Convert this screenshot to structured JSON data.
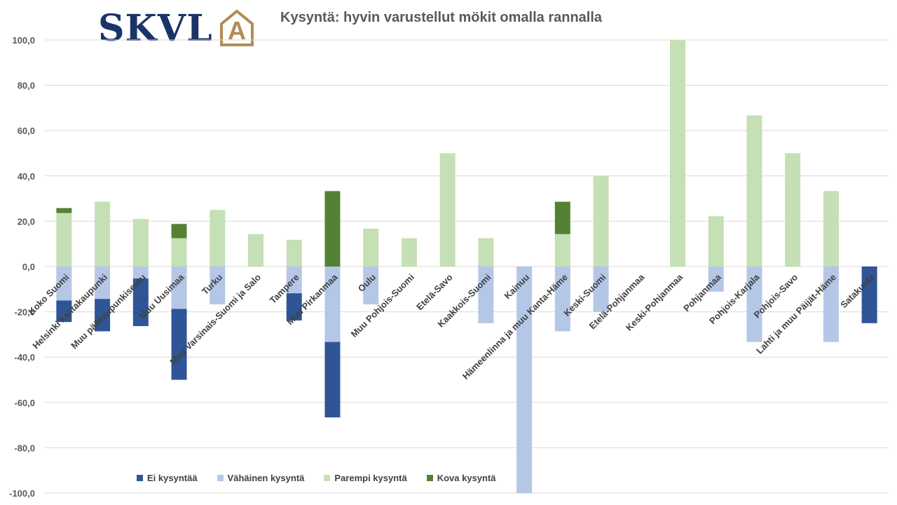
{
  "logo": {
    "text": "SKVL",
    "mark_letter": "A",
    "text_color": "#1b3468",
    "mark_color": "#b08d55"
  },
  "title": "Kysyntä: hyvin varustellut mökit omalla rannalla",
  "chart_data": {
    "type": "bar",
    "stacked": true,
    "title": "Kysyntä: hyvin varustellut mökit omalla rannalla",
    "xlabel": "",
    "ylabel": "",
    "ylim": [
      -100,
      100
    ],
    "yticks": [
      -100,
      -80,
      -60,
      -40,
      -20,
      0,
      20,
      40,
      60,
      80,
      100
    ],
    "ytick_labels": [
      "-100,0",
      "-80,0",
      "-60,0",
      "-40,0",
      "-20,0",
      "0,0",
      "20,0",
      "40,0",
      "60,0",
      "80,0",
      "100,0"
    ],
    "grid": true,
    "legend_position": "bottom",
    "categories": [
      "Koko Suomi",
      "Helsinki kantakaupunki",
      "Muu pääkaupunkiseutu",
      "Muu Uusimaa",
      "Turku",
      "Muu Varsinais-Suomi ja Salo",
      "Tampere",
      "Muu Pirkanmaa",
      "Oulu",
      "Muu Pohjois-Suomi",
      "Etelä-Savo",
      "Kaakkois-Suomi",
      "Kainuu",
      "Hämeenlinna ja muu Kanta-Häme",
      "Keski-Suomi",
      "Etelä-Pohjanmaa",
      "Keski-Pohjanmaa",
      "Pohjanmaa",
      "Pohjois-Karjala",
      "Pohjois-Savo",
      "Lahti ja muu Päijät-Häme",
      "Satakunta"
    ],
    "series": [
      {
        "name": "Ei kysyntää",
        "color": "#2f5597",
        "direction": "negative",
        "values": [
          9.5,
          14.3,
          21.0,
          31.3,
          0,
          0,
          12.0,
          33.3,
          0,
          0,
          0,
          0,
          0,
          0,
          0,
          0,
          0,
          0,
          0,
          0,
          0,
          25.0
        ]
      },
      {
        "name": "Vähäinen kysyntä",
        "color": "#b4c7e7",
        "direction": "negative",
        "values": [
          15.0,
          14.3,
          5.3,
          18.7,
          16.7,
          0,
          11.8,
          33.3,
          16.7,
          0,
          0,
          25.0,
          100.0,
          28.6,
          20.0,
          0,
          0,
          11.1,
          33.3,
          0,
          33.3,
          0
        ]
      },
      {
        "name": "Parempi kysyntä",
        "color": "#c5e0b4",
        "direction": "positive",
        "values": [
          23.6,
          28.6,
          21.0,
          12.5,
          25.0,
          14.3,
          11.8,
          0,
          16.7,
          12.5,
          50.0,
          12.5,
          0,
          14.3,
          40.0,
          0,
          100.0,
          22.2,
          66.7,
          50.0,
          33.3,
          0
        ]
      },
      {
        "name": "Kova kysyntä",
        "color": "#548235",
        "direction": "positive",
        "values": [
          2.2,
          0,
          0,
          6.3,
          0,
          0,
          0,
          33.3,
          0,
          0,
          0,
          0,
          0,
          14.3,
          0,
          0,
          0,
          0,
          0,
          0,
          0,
          0
        ]
      }
    ]
  }
}
